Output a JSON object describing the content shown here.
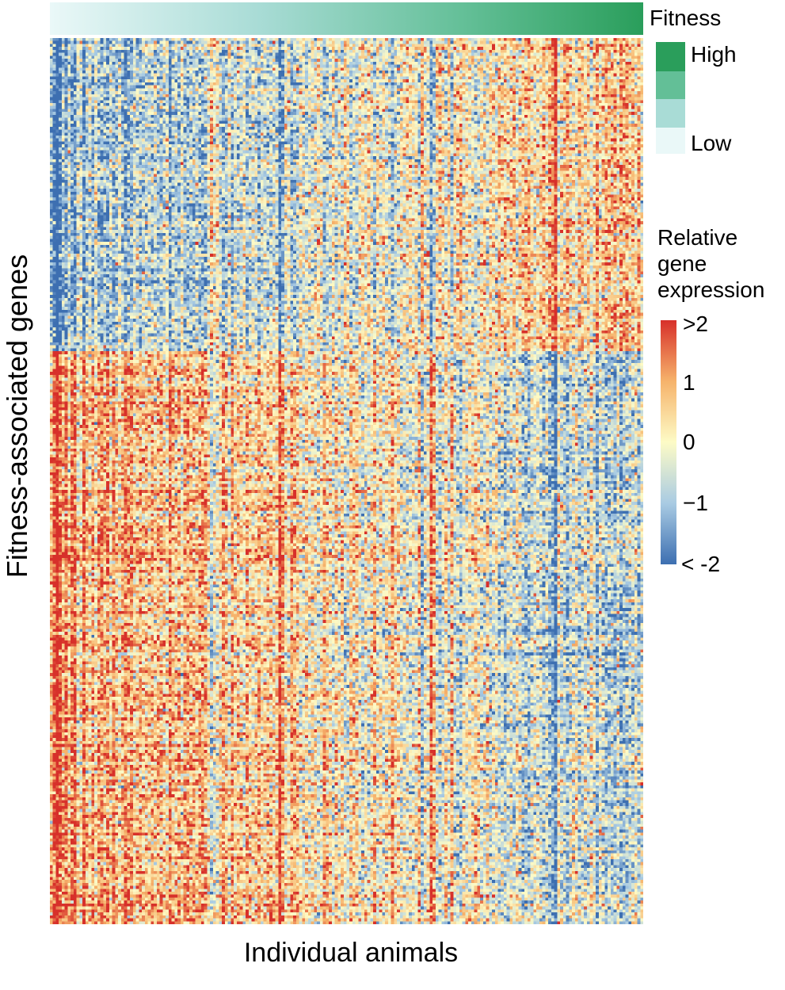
{
  "chart_data": {
    "type": "heatmap",
    "title": "",
    "xlabel": "Individual animals",
    "ylabel": "Fitness-associated genes",
    "column_annotation": {
      "name": "Fitness",
      "legend_labels": {
        "high": "High",
        "low": "Low"
      },
      "colors": [
        "#2a9e5b",
        "#63bf97",
        "#a9dcd6",
        "#eaf8f8"
      ]
    },
    "color_scale": {
      "title_lines": [
        "Relative",
        "gene",
        "expression"
      ],
      "tick_labels": [
        ">2",
        "1",
        "0",
        "−1",
        "< -2"
      ],
      "tick_values": [
        2,
        1,
        0,
        -1,
        -2
      ],
      "range": [
        -2,
        2
      ],
      "colors": [
        "#3d6fb1",
        "#a9cbe3",
        "#fdfbc6",
        "#f6b36b",
        "#d7302a"
      ]
    },
    "dimensions": {
      "individuals": 200,
      "genes": 300
    },
    "gene_clusters": [
      {
        "genes": 106,
        "pattern": "low expression in low-fitness animals, high in high-fitness animals"
      },
      {
        "genes": 194,
        "pattern": "high expression in low-fitness animals, low in high-fitness animals"
      }
    ]
  }
}
